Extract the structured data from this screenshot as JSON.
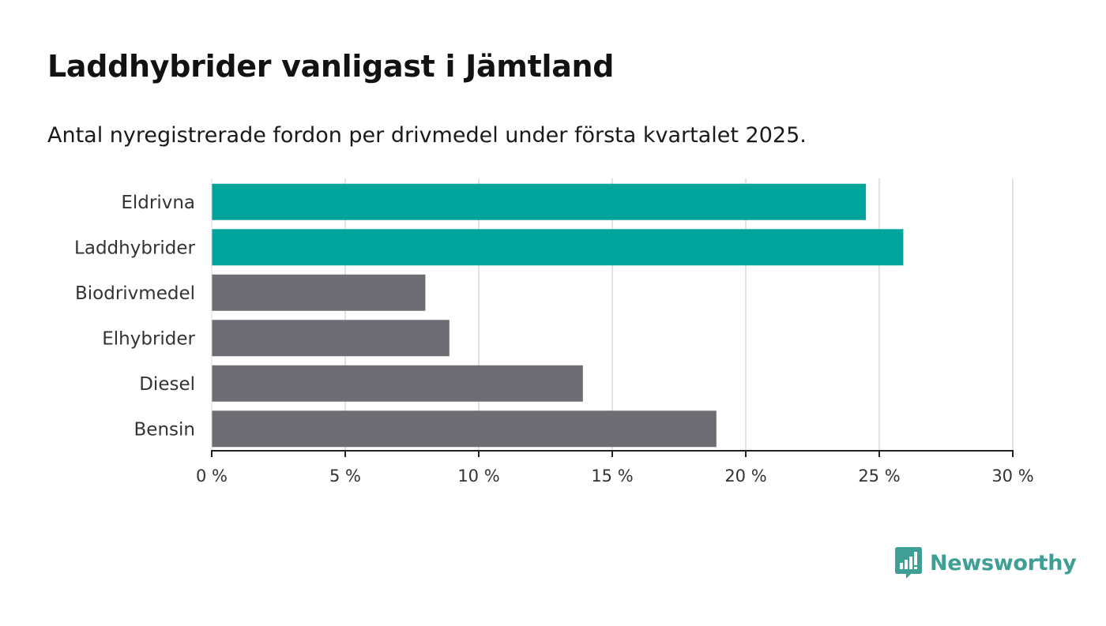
{
  "title": "Laddhybrider vanligast i Jämtland",
  "subtitle": "Antal nyregistrerade fordon per drivmedel under första kvartalet 2025.",
  "brand": {
    "name": "Newsworthy",
    "icon": "newsworthy-logo-icon"
  },
  "colors": {
    "highlight": "#00a49a",
    "default": "#6e6d73",
    "grid": "#d9d9d9",
    "axis": "#222222"
  },
  "chart_data": {
    "type": "bar",
    "orientation": "horizontal",
    "categories": [
      "Eldrivna",
      "Laddhybrider",
      "Biodrivmedel",
      "Elhybrider",
      "Diesel",
      "Bensin"
    ],
    "values": [
      24.5,
      25.9,
      8.0,
      8.9,
      13.9,
      18.9
    ],
    "highlighted": [
      true,
      true,
      false,
      false,
      false,
      false
    ],
    "xlim": [
      0,
      30
    ],
    "xticks": [
      0,
      5,
      10,
      15,
      20,
      25,
      30
    ],
    "xtick_labels": [
      "0 %",
      "5 %",
      "10 %",
      "15 %",
      "20 %",
      "25 %",
      "30 %"
    ],
    "xlabel": "",
    "ylabel": "",
    "grid": true
  }
}
